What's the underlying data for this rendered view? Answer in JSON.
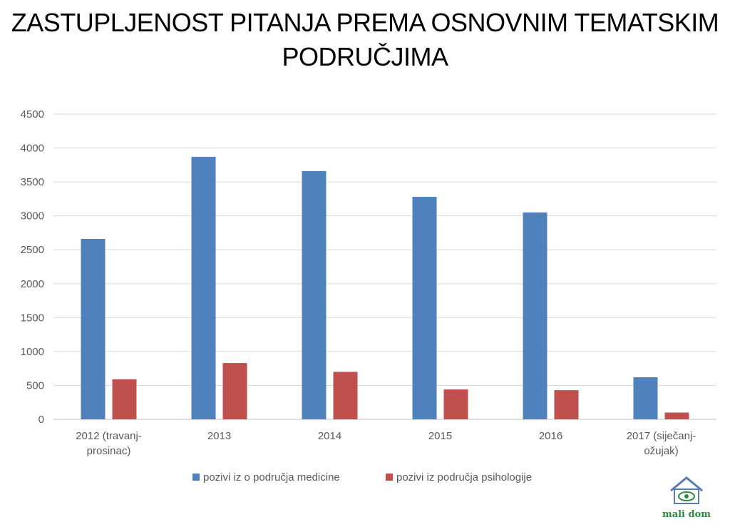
{
  "title": "ZASTUPLJENOST PITANJA PREMA OSNOVNIM TEMATSKIM PODRUČJIMA",
  "title_lines": [
    "ZASTUPLJENOST PITANJA PREMA OSNOVNIM TEMATSKIM",
    "PODRUČJIMA"
  ],
  "chart_data": {
    "type": "bar",
    "title": "ZASTUPLJENOST PITANJA PREMA OSNOVNIM TEMATSKIM PODRUČJIMA",
    "categories": [
      [
        "2012 (travanj-",
        "prosinac)"
      ],
      [
        "2013"
      ],
      [
        "2014"
      ],
      [
        "2015"
      ],
      [
        "2016"
      ],
      [
        "2017 (siječanj-",
        "ožujak)"
      ]
    ],
    "series": [
      {
        "name": "pozivi iz o područja medicine",
        "color": "#4f81bd",
        "values": [
          2660,
          3870,
          3660,
          3280,
          3050,
          620
        ]
      },
      {
        "name": "pozivi iz područja psihologije",
        "color": "#c0504d",
        "values": [
          590,
          830,
          700,
          440,
          430,
          100
        ]
      }
    ],
    "ylim": [
      0,
      4500
    ],
    "yticks": [
      0,
      500,
      1000,
      1500,
      2000,
      2500,
      3000,
      3500,
      4000,
      4500
    ],
    "grid": true,
    "legend_position": "bottom",
    "xlabel": "",
    "ylabel": ""
  },
  "logo": {
    "text": "mali dom",
    "color": "#2e8b3e",
    "roof_color": "#5b7bb5"
  }
}
